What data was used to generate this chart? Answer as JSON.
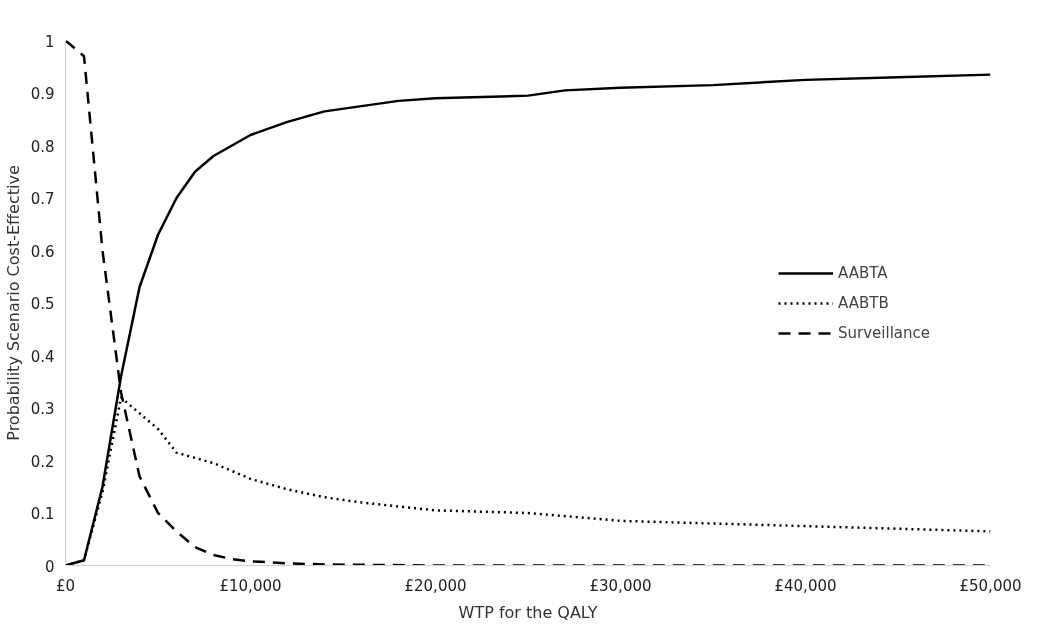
{
  "chart_data": {
    "type": "line",
    "xlabel": "WTP for the QALY",
    "ylabel": "Probability Scenario Cost-Effective",
    "xlim": [
      0,
      50000
    ],
    "ylim": [
      0,
      1
    ],
    "xticks": [
      {
        "value": 0,
        "label": "£0"
      },
      {
        "value": 10000,
        "label": "£10,000"
      },
      {
        "value": 20000,
        "label": "£20,000"
      },
      {
        "value": 30000,
        "label": "£30,000"
      },
      {
        "value": 40000,
        "label": "£40,000"
      },
      {
        "value": 50000,
        "label": "£50,000"
      }
    ],
    "yticks": [
      0,
      0.1,
      0.2,
      0.3,
      0.4,
      0.5,
      0.6,
      0.7,
      0.8,
      0.9,
      1
    ],
    "grid": false,
    "legend": "right",
    "marker": "none",
    "series": [
      {
        "name": "AABTA",
        "color": "#000000",
        "line_style": "solid",
        "x": [
          0,
          1000,
          2000,
          3000,
          4000,
          5000,
          6000,
          7000,
          8000,
          9000,
          10000,
          12000,
          14000,
          16000,
          18000,
          20000,
          25000,
          27000,
          30000,
          35000,
          40000,
          45000,
          50000
        ],
        "values": [
          0,
          0.01,
          0.15,
          0.36,
          0.53,
          0.63,
          0.7,
          0.75,
          0.78,
          0.8,
          0.82,
          0.845,
          0.865,
          0.875,
          0.885,
          0.89,
          0.895,
          0.905,
          0.91,
          0.915,
          0.925,
          0.93,
          0.935
        ]
      },
      {
        "name": "AABTB",
        "color": "#000000",
        "line_style": "dotted",
        "x": [
          0,
          1000,
          2000,
          3000,
          4000,
          5000,
          6000,
          8000,
          10000,
          12000,
          14000,
          16000,
          20000,
          25000,
          30000,
          35000,
          40000,
          45000,
          50000
        ],
        "values": [
          0,
          0.01,
          0.14,
          0.32,
          0.29,
          0.26,
          0.215,
          0.195,
          0.165,
          0.145,
          0.13,
          0.12,
          0.105,
          0.1,
          0.085,
          0.08,
          0.075,
          0.07,
          0.065
        ]
      },
      {
        "name": "Surveillance",
        "color": "#000000",
        "line_style": "dashed",
        "x": [
          0,
          1000,
          2000,
          3000,
          4000,
          5000,
          6000,
          7000,
          8000,
          9000,
          10000,
          12000,
          14000,
          20000,
          50000
        ],
        "values": [
          1,
          0.97,
          0.6,
          0.33,
          0.17,
          0.1,
          0.065,
          0.035,
          0.02,
          0.012,
          0.008,
          0.004,
          0.002,
          0,
          0
        ]
      }
    ]
  }
}
